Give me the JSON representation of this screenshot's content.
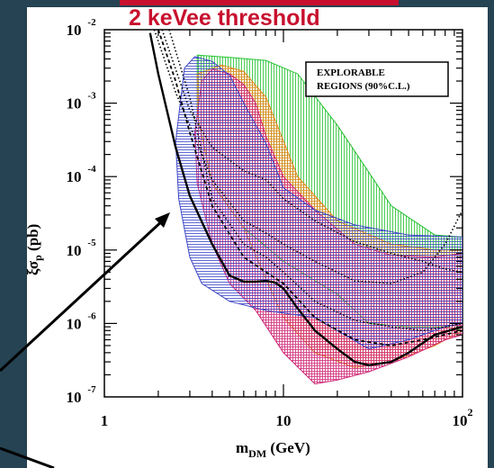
{
  "banner": {
    "text": "2 keVee threshold"
  },
  "chart_data": {
    "type": "area",
    "title": "2 keVee threshold",
    "xlabel": {
      "main": "m",
      "sub": "DM",
      "unit": " (GeV)"
    },
    "ylabel": {
      "pre": "ξσ",
      "sub": "p",
      "unit": " (pb)"
    },
    "xscale": "log",
    "yscale": "log",
    "xlim": [
      1,
      100
    ],
    "ylim": [
      1e-07,
      0.01
    ],
    "x_ticks": [
      {
        "value": 1,
        "label": "1",
        "exp": ""
      },
      {
        "value": 10,
        "label": "10",
        "exp": ""
      },
      {
        "value": 100,
        "label": "10",
        "exp": "2"
      }
    ],
    "y_ticks": [
      {
        "value": 0.01,
        "label": "10",
        "exp": "-2"
      },
      {
        "value": 0.001,
        "label": "10",
        "exp": "-3"
      },
      {
        "value": 0.0001,
        "label": "10",
        "exp": "-4"
      },
      {
        "value": 1e-05,
        "label": "10",
        "exp": "-5"
      },
      {
        "value": 1e-06,
        "label": "10",
        "exp": "-6"
      },
      {
        "value": 1e-07,
        "label": "10",
        "exp": "-7"
      }
    ],
    "legend": {
      "lines": [
        "EXPLORABLE",
        "REGIONS (90%C.L.)"
      ],
      "position": "top-right"
    },
    "regions": [
      {
        "color": "#22c22e",
        "hatch": "vertical",
        "upper": [
          [
            3.3,
            0.0045
          ],
          [
            5,
            0.0042
          ],
          [
            8,
            0.0038
          ],
          [
            12,
            0.0025
          ],
          [
            20,
            0.0005
          ],
          [
            40,
            4e-05
          ],
          [
            70,
            1.6e-05
          ],
          [
            100,
            1.5e-05
          ]
        ],
        "lower": [
          [
            3.3,
            0.0007
          ],
          [
            4,
            8e-05
          ],
          [
            6,
            2e-05
          ],
          [
            10,
            7e-06
          ],
          [
            20,
            2.5e-06
          ],
          [
            30,
            1e-06
          ],
          [
            50,
            9e-07
          ],
          [
            80,
            9e-07
          ],
          [
            100,
            8e-07
          ]
        ]
      },
      {
        "color": "#e38a1e",
        "hatch": "cross",
        "upper": [
          [
            3.3,
            0.0025
          ],
          [
            4.5,
            0.0033
          ],
          [
            6,
            0.0027
          ],
          [
            8,
            0.0012
          ],
          [
            12,
            0.0001
          ],
          [
            20,
            2.5e-05
          ],
          [
            40,
            1.2e-05
          ],
          [
            70,
            1e-05
          ],
          [
            100,
            1e-05
          ]
        ],
        "lower": [
          [
            3.3,
            0.0007
          ],
          [
            4,
            8e-05
          ],
          [
            6,
            2e-05
          ],
          [
            8,
            4e-06
          ],
          [
            10,
            1.2e-06
          ],
          [
            15,
            4e-07
          ],
          [
            25,
            2.5e-07
          ],
          [
            40,
            3e-07
          ],
          [
            70,
            5e-07
          ],
          [
            100,
            8e-07
          ]
        ]
      },
      {
        "color": "#d12a78",
        "hatch": "cross",
        "upper": [
          [
            3.2,
            0.0004
          ],
          [
            3.5,
            0.002
          ],
          [
            4,
            0.0029
          ],
          [
            5,
            0.0025
          ],
          [
            6,
            0.0018
          ],
          [
            7,
            0.001
          ],
          [
            8,
            0.00035
          ],
          [
            10,
            0.0001
          ],
          [
            15,
            3.5e-05
          ],
          [
            25,
            1.2e-05
          ],
          [
            40,
            8.5e-06
          ],
          [
            70,
            8e-06
          ],
          [
            100,
            9e-06
          ]
        ],
        "lower": [
          [
            3.2,
            0.0004
          ],
          [
            3.3,
            8e-05
          ],
          [
            4,
            1.2e-05
          ],
          [
            5,
            3.5e-06
          ],
          [
            7,
            1.5e-06
          ],
          [
            10,
            4e-07
          ],
          [
            15,
            1.5e-07
          ],
          [
            20,
            1.7e-07
          ],
          [
            30,
            2.2e-07
          ],
          [
            50,
            3.5e-07
          ],
          [
            80,
            6e-07
          ],
          [
            100,
            7e-07
          ]
        ]
      },
      {
        "color": "#3c46c8",
        "hatch": "horizontal",
        "upper": [
          [
            2.5,
            0.0003
          ],
          [
            2.8,
            0.003
          ],
          [
            3.2,
            0.0043
          ],
          [
            4,
            0.0037
          ],
          [
            5,
            0.0024
          ],
          [
            6,
            0.001
          ],
          [
            8,
            0.00028
          ],
          [
            10,
            7e-05
          ],
          [
            15,
            3.5e-05
          ],
          [
            25,
            2.2e-05
          ],
          [
            50,
            1.6e-05
          ],
          [
            100,
            1.5e-05
          ]
        ],
        "lower": [
          [
            2.5,
            0.0003
          ],
          [
            2.6,
            5e-05
          ],
          [
            3,
            8e-06
          ],
          [
            3.5,
            3.5e-06
          ],
          [
            5,
            2e-06
          ],
          [
            8,
            1.5e-06
          ],
          [
            15,
            1.2e-06
          ],
          [
            30,
            4.5e-07
          ],
          [
            50,
            6e-07
          ],
          [
            80,
            9e-07
          ],
          [
            100,
            1e-06
          ]
        ]
      }
    ],
    "curves": [
      {
        "style": "solid",
        "points": [
          [
            1.8,
            0.009
          ],
          [
            2,
            0.0025
          ],
          [
            2.5,
            0.00025
          ],
          [
            3,
            5.5e-05
          ],
          [
            4,
            1.2e-05
          ],
          [
            5,
            4.5e-06
          ],
          [
            6,
            3.7e-06
          ],
          [
            7,
            3.7e-06
          ],
          [
            8,
            3.8e-06
          ],
          [
            9,
            3.6e-06
          ],
          [
            10,
            3e-06
          ],
          [
            12,
            1.6e-06
          ],
          [
            15,
            8e-07
          ],
          [
            20,
            4.5e-07
          ],
          [
            25,
            3e-07
          ],
          [
            30,
            2.7e-07
          ],
          [
            40,
            3e-07
          ],
          [
            50,
            4e-07
          ],
          [
            70,
            7e-07
          ],
          [
            100,
            9e-07
          ]
        ]
      },
      {
        "style": "dotted",
        "points": [
          [
            1.9,
            0.01
          ],
          [
            2.5,
            0.0014
          ],
          [
            3,
            0.0005
          ],
          [
            4,
            9e-05
          ],
          [
            6,
            2.5e-05
          ],
          [
            8,
            1.7e-05
          ],
          [
            10,
            1.2e-05
          ],
          [
            15,
            7e-06
          ],
          [
            25,
            3.8e-06
          ],
          [
            40,
            3.5e-06
          ],
          [
            60,
            5e-06
          ],
          [
            80,
            1.2e-05
          ],
          [
            100,
            3.5e-05
          ]
        ]
      },
      {
        "style": "dotted",
        "points": [
          [
            2.1,
            0.01
          ],
          [
            3,
            0.0008
          ],
          [
            4,
            0.00025
          ],
          [
            6,
            0.00012
          ],
          [
            8,
            9e-05
          ],
          [
            10,
            5e-05
          ],
          [
            15,
            2.5e-05
          ],
          [
            25,
            1.3e-05
          ],
          [
            40,
            9e-06
          ],
          [
            60,
            7e-06
          ],
          [
            80,
            5.5e-06
          ],
          [
            100,
            5e-06
          ]
        ]
      },
      {
        "style": "dotted",
        "points": [
          [
            2.3,
            0.01
          ],
          [
            3,
            0.0012
          ],
          [
            4,
            5e-05
          ],
          [
            6,
            1.2e-05
          ],
          [
            8,
            8e-06
          ],
          [
            10,
            5e-06
          ],
          [
            15,
            2e-06
          ],
          [
            25,
            1.1e-06
          ],
          [
            40,
            9e-07
          ],
          [
            60,
            8e-07
          ],
          [
            80,
            9e-07
          ],
          [
            100,
            1e-06
          ]
        ]
      },
      {
        "style": "dashed",
        "points": [
          [
            2,
            0.01
          ],
          [
            2.5,
            0.002
          ],
          [
            3,
            0.0004
          ],
          [
            4,
            4e-05
          ],
          [
            6,
            8e-06
          ],
          [
            8,
            5e-06
          ],
          [
            10,
            3.5e-06
          ],
          [
            15,
            1.2e-06
          ],
          [
            25,
            6e-07
          ],
          [
            40,
            5e-07
          ],
          [
            60,
            6e-07
          ],
          [
            100,
            8e-07
          ]
        ]
      }
    ]
  }
}
